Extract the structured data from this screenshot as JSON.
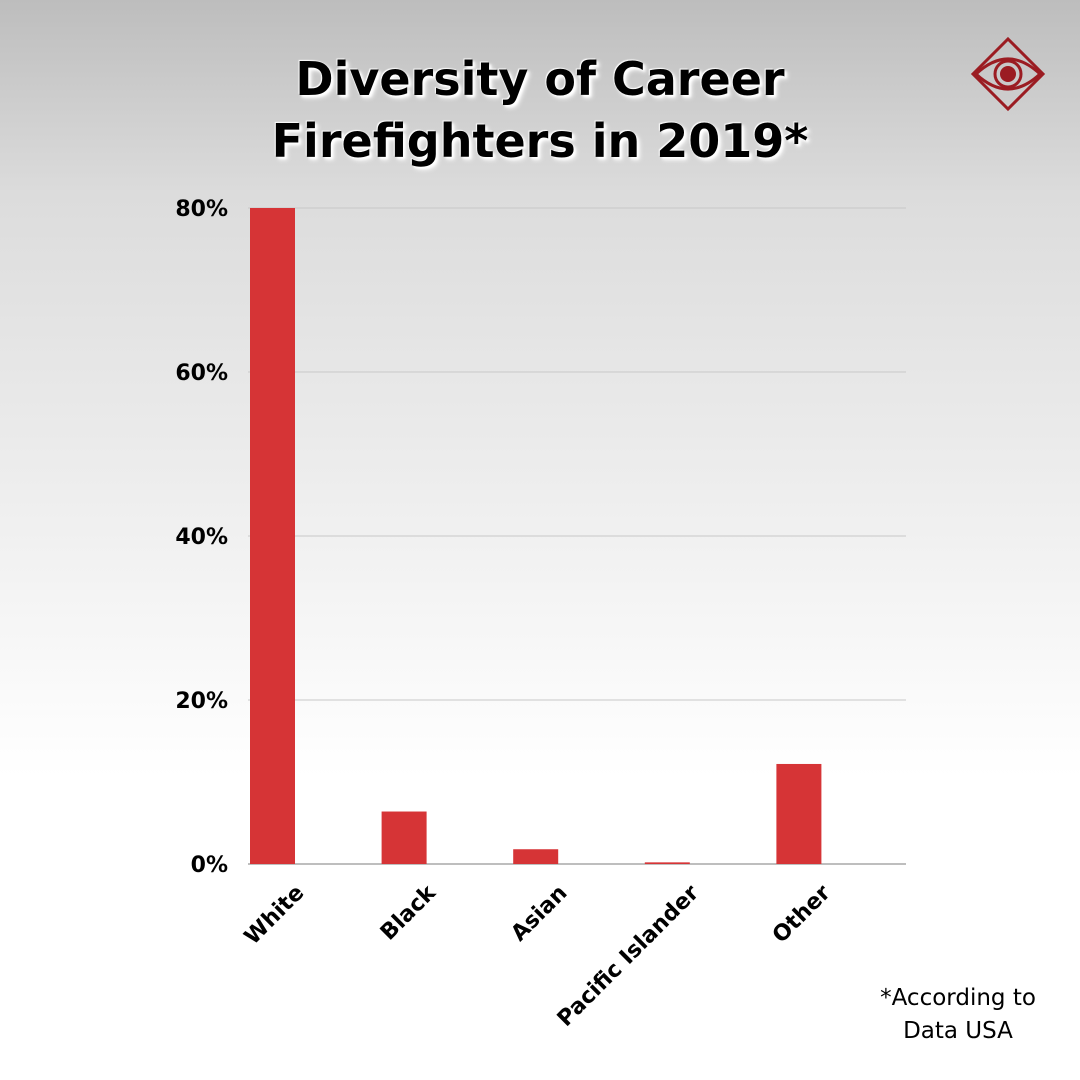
{
  "header": {
    "title_line1": "Diversity of Career",
    "title_line2": "Firefighters in 2019*"
  },
  "logo": {
    "icon": "eye-logo-icon",
    "color": "#9b1c22"
  },
  "footnote": {
    "line1": "*According to",
    "line2": "Data USA"
  },
  "chart_data": {
    "type": "bar",
    "title": "Diversity of Career Firefighters in 2019*",
    "categories": [
      "White",
      "Black",
      "Asian",
      "Pacific Islander",
      "Other"
    ],
    "values": [
      80,
      6.4,
      1.8,
      0.2,
      12.2
    ],
    "value_suffix": "%",
    "ylim": [
      0,
      80
    ],
    "yticks": [
      0,
      20,
      40,
      60,
      80
    ],
    "ytick_labels": [
      "0%",
      "20%",
      "40%",
      "60%",
      "80%"
    ],
    "xlabel": "",
    "ylabel": "",
    "grid": true,
    "bar_color": "#d63436",
    "grid_color": "#c8c8c8"
  }
}
